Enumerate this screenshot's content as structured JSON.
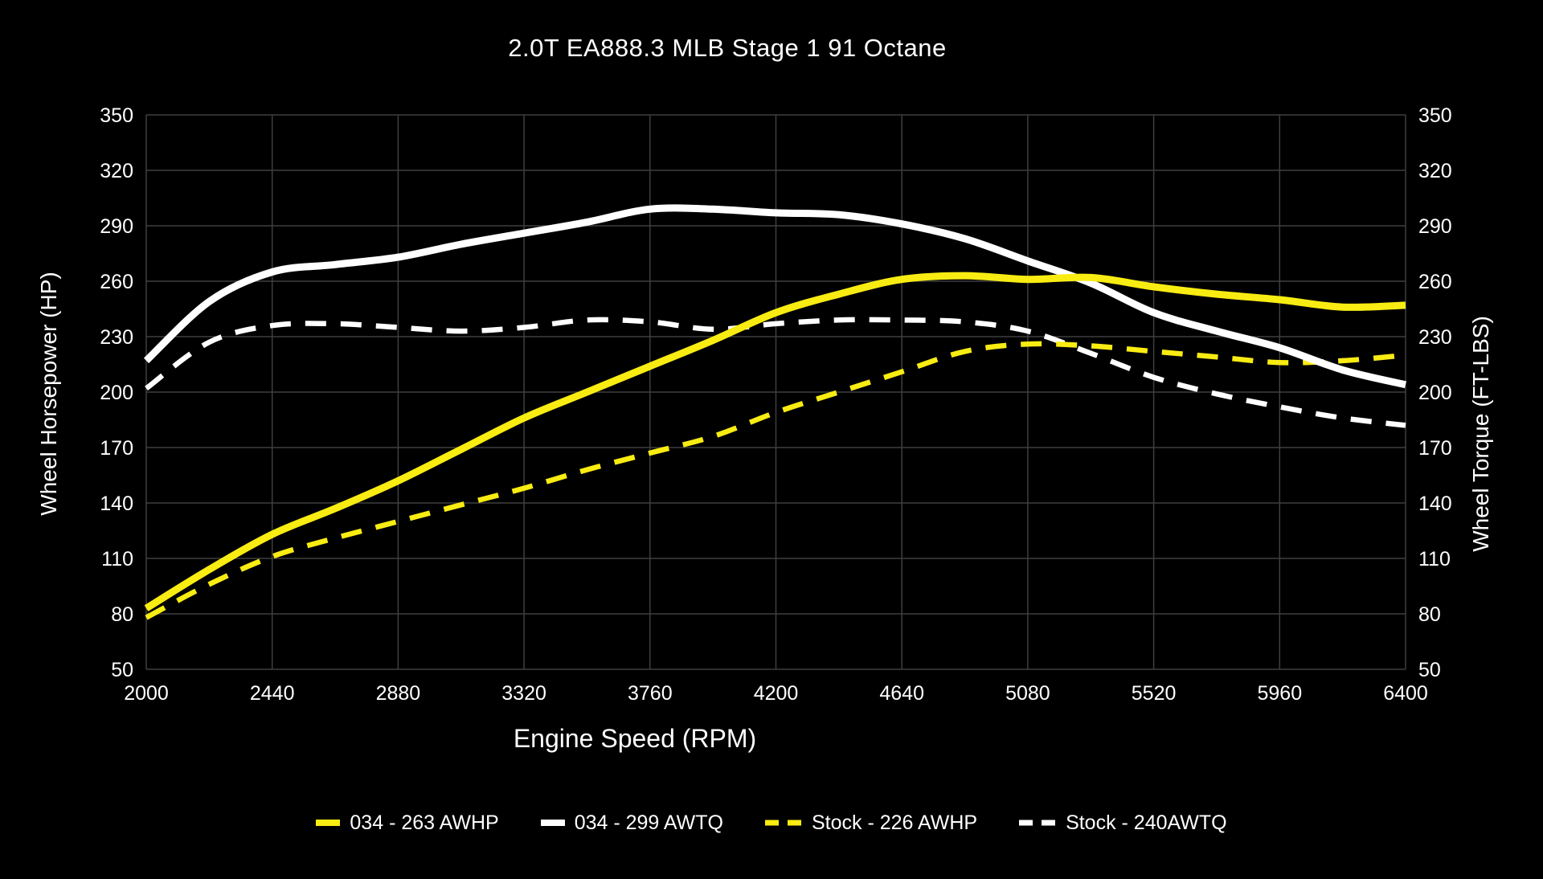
{
  "window": {
    "background": "#000000"
  },
  "colors": {
    "background": "#000000",
    "text": "#ffffff",
    "gridline": "#3f3f3f",
    "accent_yellow": "#f8ec12",
    "accent_white": "#ffffff"
  },
  "chart_data": {
    "type": "line",
    "title": "2.0T EA888.3 MLB Stage 1 91 Octane",
    "xlabel": "Engine Speed (RPM)",
    "ylabel_left": "Wheel Horsepower (HP)",
    "ylabel_right": "Wheel Torque (FT-LBS)",
    "xlim": [
      2000,
      6400
    ],
    "ylim": [
      50,
      350
    ],
    "x_ticks": [
      2000,
      2440,
      2880,
      3320,
      3760,
      4200,
      4640,
      5080,
      5520,
      5960,
      6400
    ],
    "y_ticks": [
      50,
      80,
      110,
      140,
      170,
      200,
      230,
      260,
      290,
      320,
      350
    ],
    "grid": true,
    "legend_position": "bottom",
    "x": [
      2000,
      2220,
      2440,
      2660,
      2880,
      3100,
      3320,
      3540,
      3760,
      3980,
      4200,
      4420,
      4640,
      4860,
      5080,
      5300,
      5520,
      5740,
      5960,
      6180,
      6400
    ],
    "series": [
      {
        "name": "034 - 263 AWHP",
        "color": "#f8ec12",
        "style": "solid",
        "axis": "left",
        "peak": 263,
        "values": [
          83,
          104,
          123,
          137,
          152,
          169,
          186,
          200,
          214,
          228,
          243,
          253,
          261,
          263,
          261,
          262,
          257,
          253,
          250,
          246,
          247
        ]
      },
      {
        "name": "034 - 299 AWTQ",
        "color": "#ffffff",
        "style": "solid",
        "axis": "right",
        "peak": 299,
        "values": [
          217,
          249,
          265,
          269,
          273,
          280,
          286,
          292,
          299,
          299,
          297,
          296,
          291,
          283,
          271,
          259,
          243,
          233,
          224,
          212,
          204
        ]
      },
      {
        "name": "Stock - 226 AWHP",
        "color": "#f8ec12",
        "style": "dashed",
        "axis": "left",
        "peak": 226,
        "values": [
          78,
          96,
          111,
          121,
          130,
          139,
          148,
          158,
          167,
          176,
          189,
          200,
          211,
          222,
          226,
          225,
          222,
          219,
          216,
          217,
          220
        ]
      },
      {
        "name": "Stock - 240AWTQ",
        "color": "#ffffff",
        "style": "dashed",
        "axis": "right",
        "peak": 240,
        "values": [
          202,
          227,
          236,
          237,
          235,
          233,
          235,
          239,
          238,
          234,
          237,
          239,
          239,
          238,
          233,
          221,
          208,
          199,
          192,
          186,
          182
        ]
      }
    ]
  }
}
